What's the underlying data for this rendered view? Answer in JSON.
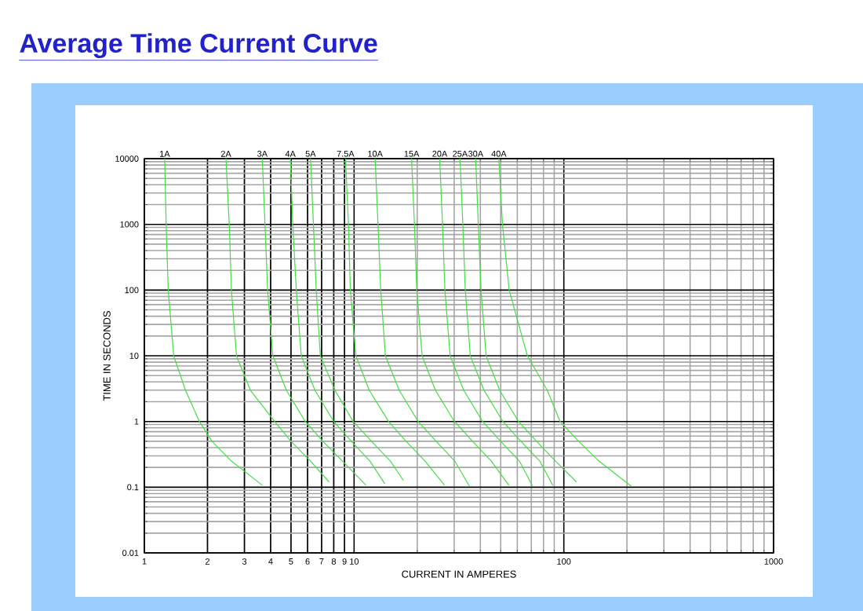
{
  "chart_data": {
    "type": "line",
    "title": "Average Time Current Curve",
    "xlabel": "CURRENT IN AMPERES",
    "ylabel": "TIME IN SECONDS",
    "log": "xy",
    "grid": true,
    "legend": false,
    "marker": "none",
    "line_style": "solid",
    "xlim": [
      1,
      1000
    ],
    "ylim": [
      0.01,
      10000
    ],
    "xticks": [
      1,
      2,
      3,
      4,
      5,
      6,
      7,
      8,
      9,
      10,
      100,
      1000
    ],
    "yticks": [
      0.01,
      0.1,
      1,
      10,
      100,
      1000,
      10000
    ],
    "series": [
      {
        "name": "1A",
        "color": "#44dd44",
        "x": [
          1.25,
          1.27,
          1.3,
          1.38,
          1.57,
          1.83,
          2.1,
          2.6,
          3.65
        ],
        "values": [
          10000,
          1000,
          100,
          10,
          3,
          1,
          0.5,
          0.25,
          0.107
        ]
      },
      {
        "name": "2A",
        "color": "#44dd44",
        "x": [
          2.45,
          2.54,
          2.6,
          2.75,
          3.2,
          4.18,
          5.0,
          6.2,
          7.6
        ],
        "values": [
          10000,
          1000,
          100,
          10,
          3,
          1,
          0.5,
          0.25,
          0.12
        ]
      },
      {
        "name": "3A",
        "color": "#44dd44",
        "x": [
          3.65,
          3.76,
          3.87,
          4.1,
          4.75,
          5.85,
          7.1,
          8.8,
          11.4
        ],
        "values": [
          10000,
          1000,
          100,
          10,
          3,
          1,
          0.5,
          0.25,
          0.107
        ]
      },
      {
        "name": "4A",
        "color": "#44dd44",
        "x": [
          4.97,
          5.1,
          5.3,
          5.6,
          6.5,
          8.0,
          9.7,
          11.9,
          14.0
        ],
        "values": [
          10000,
          1000,
          100,
          10,
          3,
          1,
          0.5,
          0.25,
          0.113
        ]
      },
      {
        "name": "5A",
        "color": "#44dd44",
        "x": [
          6.2,
          6.4,
          6.6,
          6.9,
          8.1,
          9.9,
          12.1,
          14.9,
          17.2
        ],
        "values": [
          10000,
          1000,
          100,
          10,
          3,
          1,
          0.5,
          0.25,
          0.126
        ]
      },
      {
        "name": "7.5A",
        "color": "#44dd44",
        "x": [
          9.1,
          9.4,
          9.6,
          10.2,
          11.8,
          14.6,
          17.7,
          21.8,
          27.0
        ],
        "values": [
          10000,
          1000,
          100,
          10,
          3,
          1,
          0.5,
          0.25,
          0.107
        ]
      },
      {
        "name": "10A",
        "color": "#44dd44",
        "x": [
          12.6,
          13.0,
          13.4,
          14.1,
          16.4,
          20.2,
          24.6,
          30.2,
          35.5
        ],
        "values": [
          10000,
          1000,
          100,
          10,
          3,
          1,
          0.5,
          0.25,
          0.103
        ]
      },
      {
        "name": "15A",
        "color": "#44dd44",
        "x": [
          18.8,
          19.4,
          19.9,
          21.1,
          24.4,
          30.1,
          36.7,
          45.1,
          54.7
        ],
        "values": [
          10000,
          1000,
          100,
          10,
          3,
          1,
          0.5,
          0.25,
          0.107
        ]
      },
      {
        "name": "20A",
        "color": "#44dd44",
        "x": [
          25.6,
          26.4,
          27.1,
          28.7,
          33.3,
          41,
          50,
          61.4,
          70.8
        ],
        "values": [
          10000,
          1000,
          100,
          10,
          3,
          1,
          0.5,
          0.25,
          0.105
        ]
      },
      {
        "name": "25A",
        "color": "#44dd44",
        "x": [
          32,
          33,
          33.9,
          35.8,
          41.6,
          51.2,
          62.4,
          76.8,
          88.6
        ],
        "values": [
          10000,
          1000,
          100,
          10,
          3,
          1,
          0.5,
          0.25,
          0.107
        ]
      },
      {
        "name": "30A",
        "color": "#44dd44",
        "x": [
          38,
          39.1,
          40.3,
          42.6,
          49.4,
          60.8,
          74.1,
          91.2,
          115
        ],
        "values": [
          10000,
          1000,
          100,
          10,
          3,
          1,
          0.5,
          0.25,
          0.12
        ]
      },
      {
        "name": "40A",
        "color": "#44dd44",
        "x": [
          49,
          51,
          54.9,
          67,
          83.3,
          96,
          117.6,
          147,
          210
        ],
        "values": [
          10000,
          1000,
          100,
          10,
          3,
          1,
          0.5,
          0.25,
          0.103
        ]
      }
    ]
  }
}
